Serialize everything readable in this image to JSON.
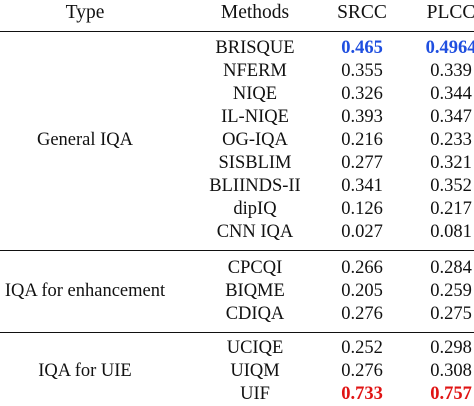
{
  "header": {
    "type": "Type",
    "methods": "Methods",
    "srcc": "SRCC",
    "plcc": "PLCC"
  },
  "groups": [
    {
      "type": "General IQA",
      "rows": [
        {
          "method": "BRISQUE",
          "srcc": "0.465",
          "plcc": "0.4964"
        },
        {
          "method": "NFERM",
          "srcc": "0.355",
          "plcc": "0.339"
        },
        {
          "method": "NIQE",
          "srcc": "0.326",
          "plcc": "0.344"
        },
        {
          "method": "IL-NIQE",
          "srcc": "0.393",
          "plcc": "0.347"
        },
        {
          "method": "OG-IQA",
          "srcc": "0.216",
          "plcc": "0.233"
        },
        {
          "method": "SISBLIM",
          "srcc": "0.277",
          "plcc": "0.321"
        },
        {
          "method": "BLIINDS-II",
          "srcc": "0.341",
          "plcc": "0.352"
        },
        {
          "method": "dipIQ",
          "srcc": "0.126",
          "plcc": "0.217"
        },
        {
          "method": "CNN IQA",
          "srcc": "0.027",
          "plcc": "0.081"
        }
      ]
    },
    {
      "type": "IQA for enhancement",
      "rows": [
        {
          "method": "CPCQI",
          "srcc": "0.266",
          "plcc": "0.284"
        },
        {
          "method": "BIQME",
          "srcc": "0.205",
          "plcc": "0.259"
        },
        {
          "method": "CDIQA",
          "srcc": "0.276",
          "plcc": "0.275"
        }
      ]
    },
    {
      "type": "IQA for UIE",
      "rows": [
        {
          "method": "UCIQE",
          "srcc": "0.252",
          "plcc": "0.298"
        },
        {
          "method": "UIQM",
          "srcc": "0.276",
          "plcc": "0.308"
        },
        {
          "method": "UIF",
          "srcc": "0.733",
          "plcc": "0.757"
        }
      ]
    }
  ],
  "colors": {
    "best": "#1f4fe0",
    "highlight": "#e01414",
    "text": "#111111"
  }
}
